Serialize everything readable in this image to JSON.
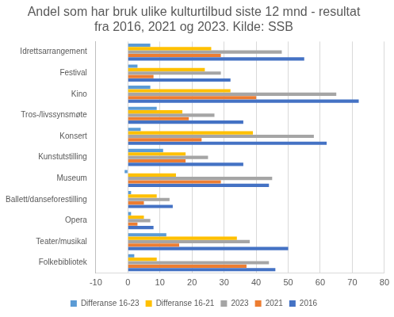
{
  "chart_data": {
    "type": "bar",
    "orientation": "horizontal",
    "title": "Andel som har bruk ulike kulturtilbud siste 12 mnd - resultat fra 2016, 2021 og 2023. Kilde: SSB",
    "categories": [
      "Idrettsarrangement",
      "Festival",
      "Kino",
      "Tros-/livssynsmøte",
      "Konsert",
      "Kunstutstilling",
      "Museum",
      "Ballett/danseforestilling",
      "Opera",
      "Teater/musikal",
      "Folkebibliotek"
    ],
    "series": [
      {
        "name": "Differanse 16-23",
        "color": "#5b9bd5",
        "values": [
          7,
          3,
          7,
          9,
          4,
          11,
          -1,
          1,
          1,
          12,
          2
        ]
      },
      {
        "name": "Differanse 16-21",
        "color": "#ffc000",
        "values": [
          26,
          24,
          32,
          17,
          39,
          18,
          15,
          9,
          5,
          34,
          9
        ]
      },
      {
        "name": "2023",
        "color": "#a5a5a5",
        "values": [
          48,
          29,
          65,
          27,
          58,
          25,
          45,
          13,
          7,
          38,
          44
        ]
      },
      {
        "name": "2021",
        "color": "#ed7d31",
        "values": [
          29,
          8,
          40,
          19,
          23,
          18,
          29,
          5,
          3,
          16,
          37
        ]
      },
      {
        "name": "2016",
        "color": "#4472c4",
        "values": [
          55,
          32,
          72,
          36,
          62,
          36,
          44,
          14,
          8,
          50,
          46
        ]
      }
    ],
    "xlim": [
      -10,
      80
    ],
    "xticks": [
      -10,
      0,
      10,
      20,
      30,
      40,
      50,
      60,
      70,
      80
    ],
    "grid": true,
    "legend": "bottom"
  }
}
